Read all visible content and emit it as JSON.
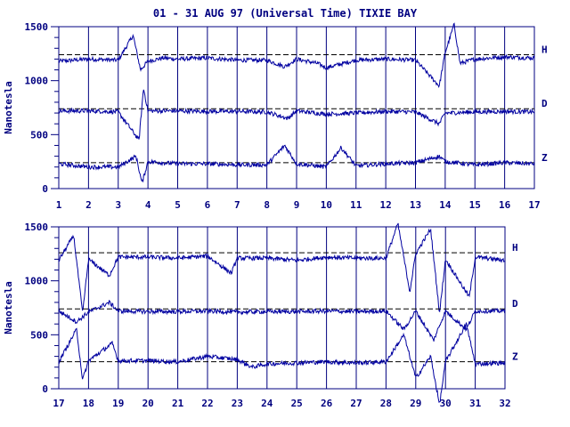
{
  "title": "01 - 31 AUG 97 (Universal Time) TIXIE BAY",
  "colors": {
    "trace": "#0000a0",
    "axis": "#000080",
    "baseline": "#000000"
  },
  "chart_data": [
    {
      "type": "line",
      "ylabel": "Nanotesla",
      "ylim": [
        0,
        1500
      ],
      "yticks": [
        0,
        500,
        1000,
        1500
      ],
      "xlim": [
        1,
        17
      ],
      "xticks": [
        "1",
        "2",
        "3",
        "4",
        "5",
        "6",
        "7",
        "8",
        "9",
        "10",
        "11",
        "12",
        "13",
        "14",
        "15",
        "16",
        "17"
      ],
      "grid": "vertical day lines",
      "series": [
        {
          "name": "H",
          "baseline": 1240,
          "x": [
            1,
            2,
            3,
            3.5,
            3.75,
            4,
            4.5,
            5,
            6,
            7,
            8,
            8.6,
            9,
            9.7,
            10,
            11,
            12,
            13,
            13.8,
            14,
            14.3,
            14.5,
            15,
            16,
            17
          ],
          "values": [
            1180,
            1200,
            1190,
            1420,
            1100,
            1180,
            1210,
            1200,
            1210,
            1190,
            1190,
            1130,
            1200,
            1160,
            1120,
            1190,
            1200,
            1190,
            950,
            1260,
            1520,
            1160,
            1200,
            1220,
            1210
          ]
        },
        {
          "name": "D",
          "baseline": 740,
          "x": [
            1,
            2,
            3,
            3.7,
            3.85,
            4,
            5,
            6,
            7,
            8,
            8.7,
            9,
            10,
            11,
            12,
            13,
            13.8,
            14,
            15,
            16,
            17
          ],
          "values": [
            720,
            720,
            710,
            450,
            930,
            720,
            720,
            715,
            715,
            710,
            650,
            720,
            690,
            700,
            715,
            710,
            600,
            700,
            710,
            715,
            710
          ]
        },
        {
          "name": "Z",
          "baseline": 240,
          "x": [
            1,
            2,
            3,
            3.6,
            3.8,
            4,
            5,
            6,
            7,
            8,
            8.6,
            9,
            10,
            10.5,
            11,
            12,
            13,
            13.8,
            14,
            15,
            16,
            17
          ],
          "values": [
            230,
            200,
            200,
            300,
            50,
            250,
            230,
            230,
            220,
            220,
            400,
            230,
            200,
            380,
            210,
            230,
            240,
            300,
            250,
            220,
            240,
            230
          ]
        }
      ]
    },
    {
      "type": "line",
      "ylabel": "Nanotesla",
      "ylim": [
        0,
        1500
      ],
      "yticks": [
        0,
        500,
        1000,
        1500
      ],
      "xlim": [
        17,
        32
      ],
      "xticks": [
        "17",
        "18",
        "19",
        "20",
        "21",
        "22",
        "23",
        "24",
        "25",
        "26",
        "27",
        "28",
        "29",
        "30",
        "31",
        "32"
      ],
      "grid": "vertical day lines",
      "series": [
        {
          "name": "H",
          "baseline": 1260,
          "x": [
            17,
            17.5,
            17.8,
            18,
            18.7,
            19,
            20,
            21,
            22,
            22.8,
            23,
            24,
            25,
            26,
            27,
            28,
            28.4,
            28.8,
            29,
            29.5,
            29.8,
            30,
            30.8,
            31,
            32
          ],
          "values": [
            1190,
            1420,
            700,
            1200,
            1050,
            1220,
            1220,
            1210,
            1230,
            1070,
            1210,
            1210,
            1190,
            1220,
            1210,
            1210,
            1530,
            900,
            1250,
            1480,
            700,
            1200,
            850,
            1220,
            1190
          ]
        },
        {
          "name": "D",
          "baseline": 740,
          "x": [
            17,
            17.6,
            18,
            18.7,
            19,
            20,
            21,
            22,
            23,
            24,
            25,
            26,
            27,
            28,
            28.6,
            29,
            29.6,
            30,
            30.7,
            31,
            32
          ],
          "values": [
            720,
            620,
            710,
            800,
            720,
            715,
            715,
            720,
            710,
            715,
            715,
            720,
            715,
            720,
            550,
            720,
            450,
            720,
            550,
            720,
            720
          ]
        },
        {
          "name": "Z",
          "baseline": 250,
          "x": [
            17,
            17.6,
            17.8,
            18,
            18.8,
            19,
            20,
            21,
            22,
            23,
            23.5,
            24,
            25,
            26,
            27,
            28,
            28.6,
            29,
            29.5,
            29.8,
            30,
            30.7,
            31,
            32
          ],
          "values": [
            250,
            550,
            80,
            260,
            420,
            260,
            260,
            250,
            300,
            270,
            200,
            230,
            240,
            250,
            240,
            250,
            500,
            100,
            300,
            -150,
            250,
            600,
            230,
            240
          ]
        }
      ]
    }
  ]
}
